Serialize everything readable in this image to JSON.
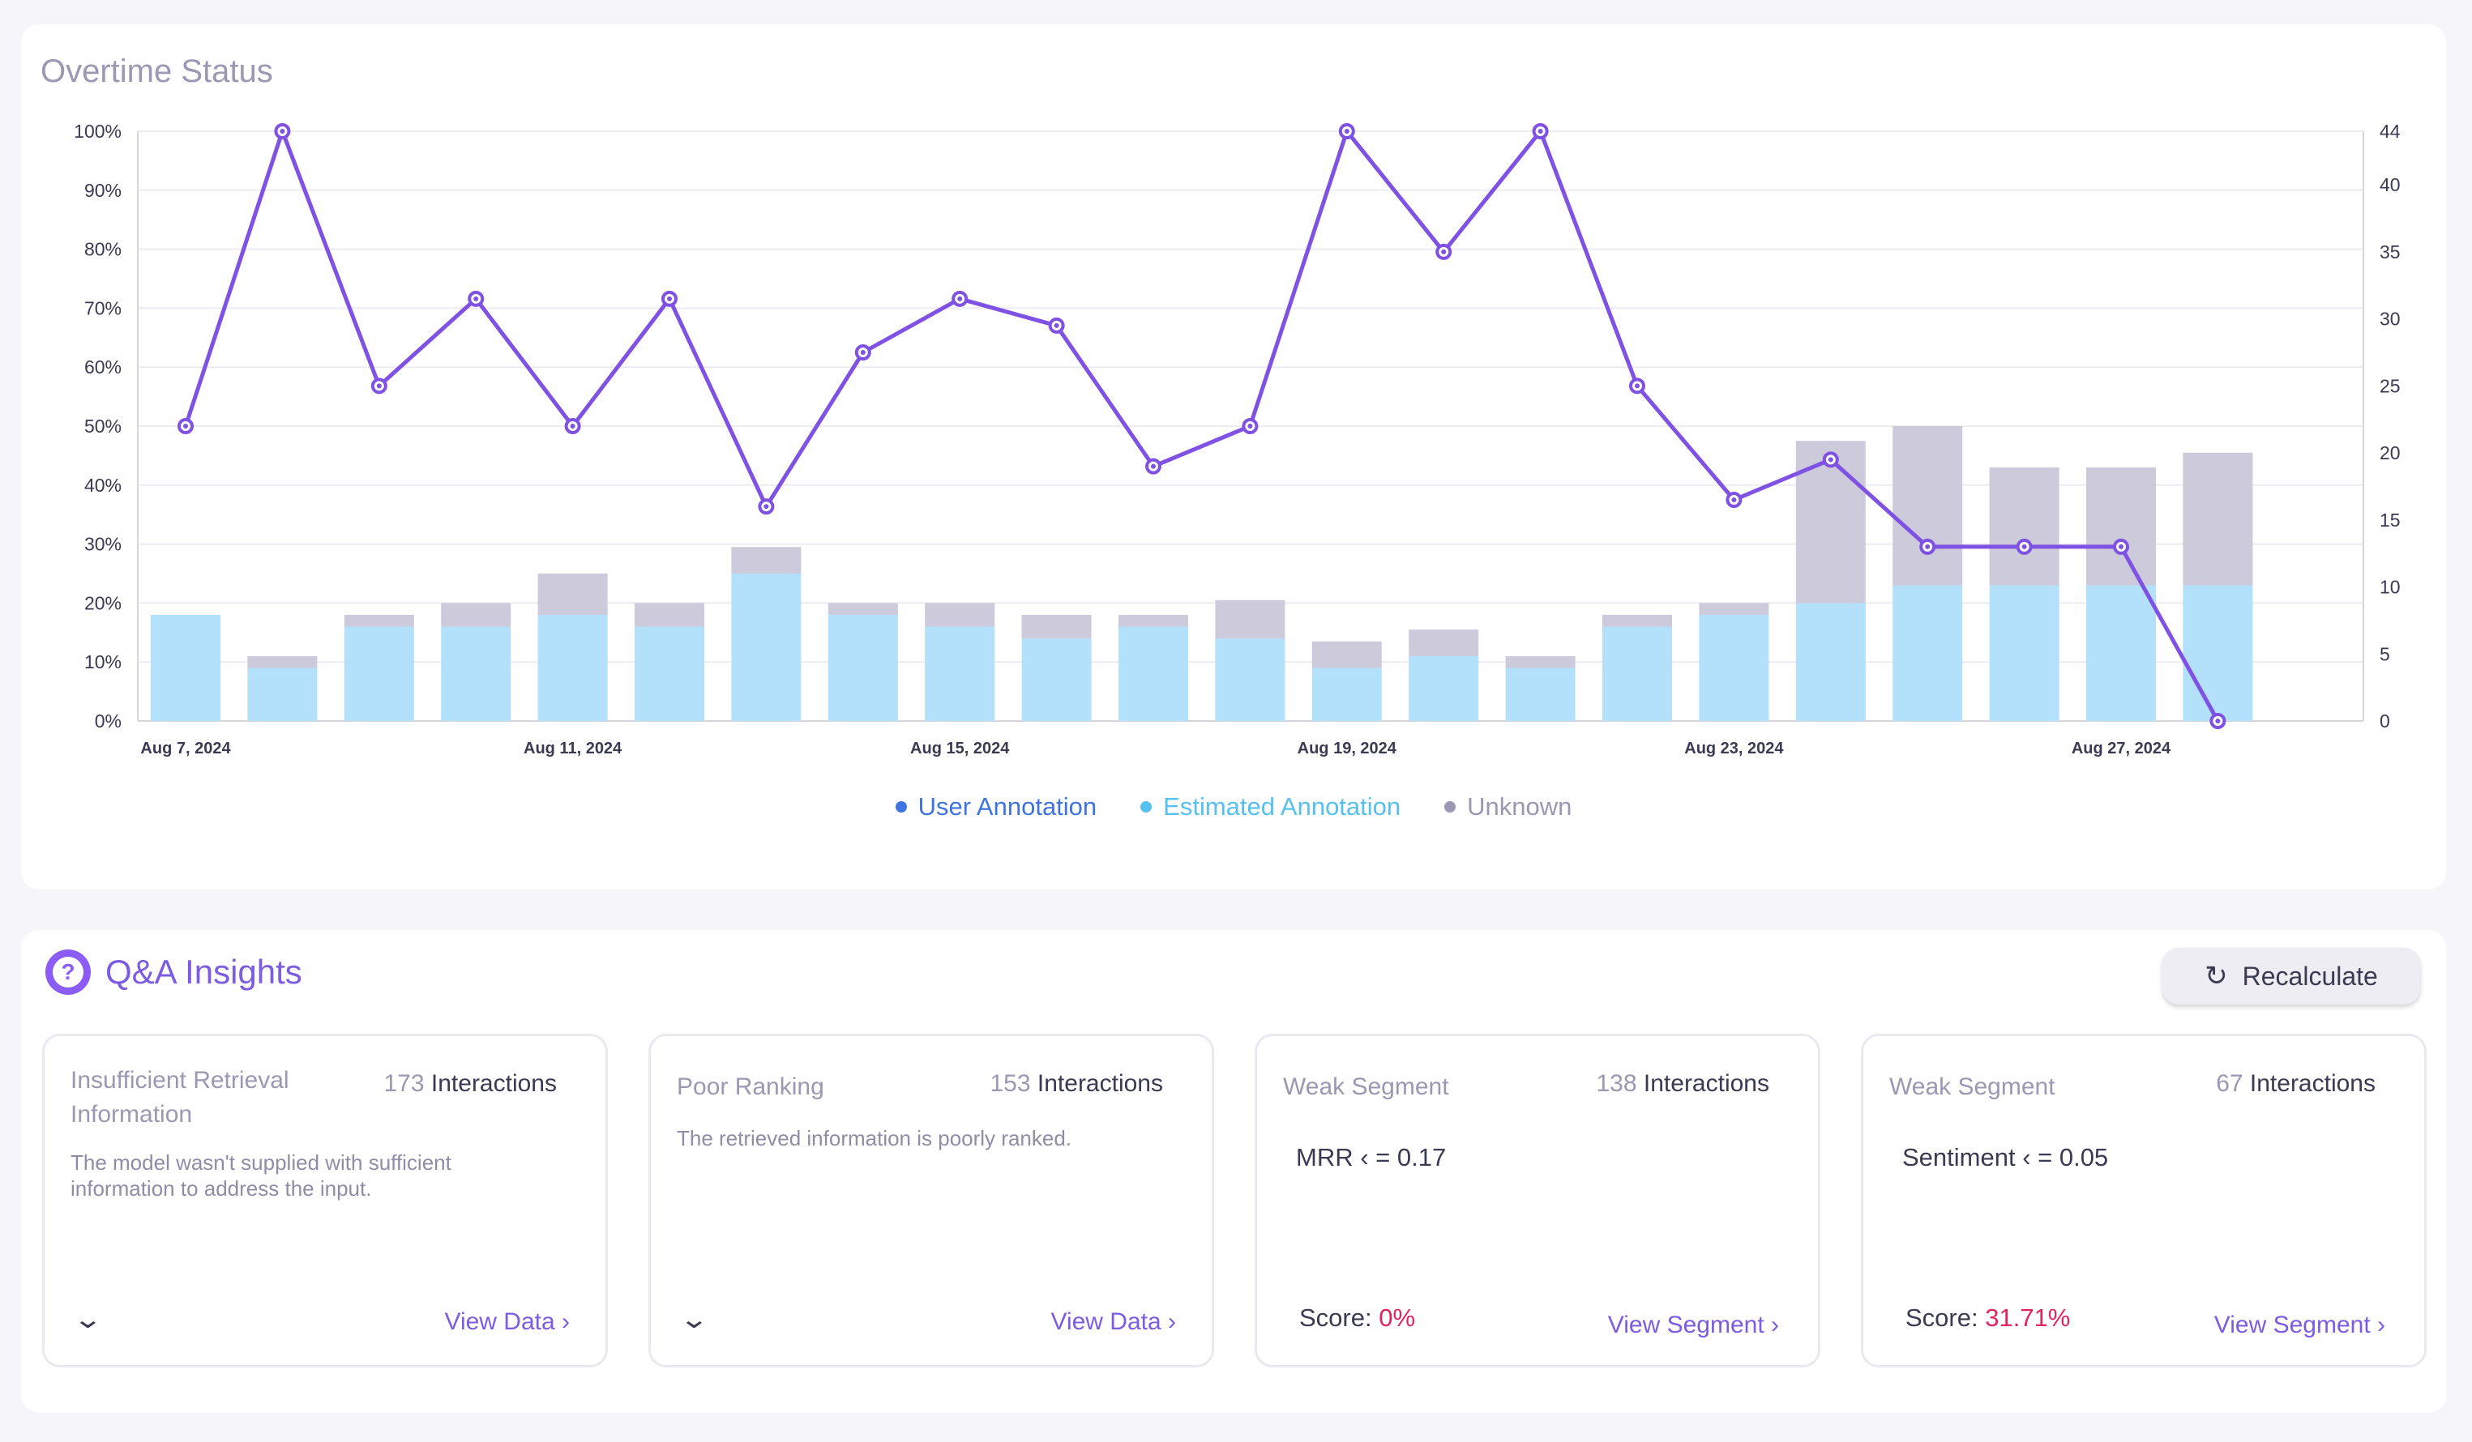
{
  "chart_panel": {
    "title": "Overtime Status"
  },
  "chart_data": {
    "type": "bar",
    "categories": [
      "Aug 7, 2024",
      "Aug 8, 2024",
      "Aug 9, 2024",
      "Aug 10, 2024",
      "Aug 11, 2024",
      "Aug 12, 2024",
      "Aug 13, 2024",
      "Aug 14, 2024",
      "Aug 15, 2024",
      "Aug 16, 2024",
      "Aug 17, 2024",
      "Aug 18, 2024",
      "Aug 19, 2024",
      "Aug 20, 2024",
      "Aug 21, 2024",
      "Aug 22, 2024",
      "Aug 23, 2024",
      "Aug 24, 2024",
      "Aug 25, 2024",
      "Aug 26, 2024",
      "Aug 27, 2024",
      "Aug 28, 2024"
    ],
    "x_tick_labels": [
      "Aug 7, 2024",
      "Aug 11, 2024",
      "Aug 15, 2024",
      "Aug 19, 2024",
      "Aug 23, 2024",
      "Aug 27, 2024"
    ],
    "y_left_ticks": [
      "0%",
      "10%",
      "20%",
      "30%",
      "40%",
      "50%",
      "60%",
      "70%",
      "80%",
      "90%",
      "100%"
    ],
    "y_right_ticks": [
      "0",
      "5",
      "10",
      "15",
      "20",
      "25",
      "30",
      "35",
      "40",
      "44"
    ],
    "ylim_left": [
      0,
      100
    ],
    "ylim_right": [
      0,
      44
    ],
    "series": [
      {
        "name": "Estimated Annotation",
        "kind": "bar",
        "color": "#b3e0fa",
        "values": [
          18,
          9,
          16,
          16,
          18,
          16,
          25,
          18,
          16,
          14,
          16,
          14,
          9,
          11,
          9,
          16,
          18,
          20,
          23,
          23,
          23,
          23
        ]
      },
      {
        "name": "Unknown",
        "kind": "bar",
        "color": "#cdcbdb",
        "values": [
          0,
          2,
          2,
          4,
          7,
          4,
          4.5,
          2,
          4,
          4,
          2,
          6.5,
          4.5,
          4.5,
          2,
          2,
          2,
          27.5,
          27,
          20,
          20,
          22.5
        ]
      },
      {
        "name": "Interactions",
        "kind": "line",
        "color": "#7f52e3",
        "values": [
          22,
          44,
          25,
          31.5,
          22,
          31.5,
          16,
          27.5,
          31.5,
          29.5,
          19,
          22,
          44,
          35,
          44,
          25,
          16.5,
          19.5,
          13,
          13,
          13,
          0
        ]
      }
    ]
  },
  "legend": [
    {
      "label": "User Annotation",
      "color": "#3f73e0"
    },
    {
      "label": "Estimated Annotation",
      "color": "#56c1ee"
    },
    {
      "label": "Unknown",
      "color": "#9a98b2"
    }
  ],
  "insights": {
    "title": "Q&A Insights",
    "icon": "question-icon",
    "recalculate_label": "Recalculate",
    "interactions_word": "Interactions",
    "cards": [
      {
        "title": "Insufficient Retrieval Information",
        "count": "173",
        "description": "The model wasn't supplied with sufficient information to address the input.",
        "link": "View Data ›"
      },
      {
        "title": "Poor Ranking",
        "count": "153",
        "description": "The retrieved information is poorly ranked.",
        "link": "View Data ›"
      },
      {
        "title": "Weak Segment",
        "count": "138",
        "condition": "MRR ‹ = 0.17",
        "score_label": "Score:",
        "score_value": "0%",
        "link": "View Segment ›"
      },
      {
        "title": "Weak Segment",
        "count": "67",
        "condition": "Sentiment ‹ = 0.05",
        "score_label": "Score:",
        "score_value": "31.71%",
        "link": "View Segment ›"
      }
    ]
  }
}
